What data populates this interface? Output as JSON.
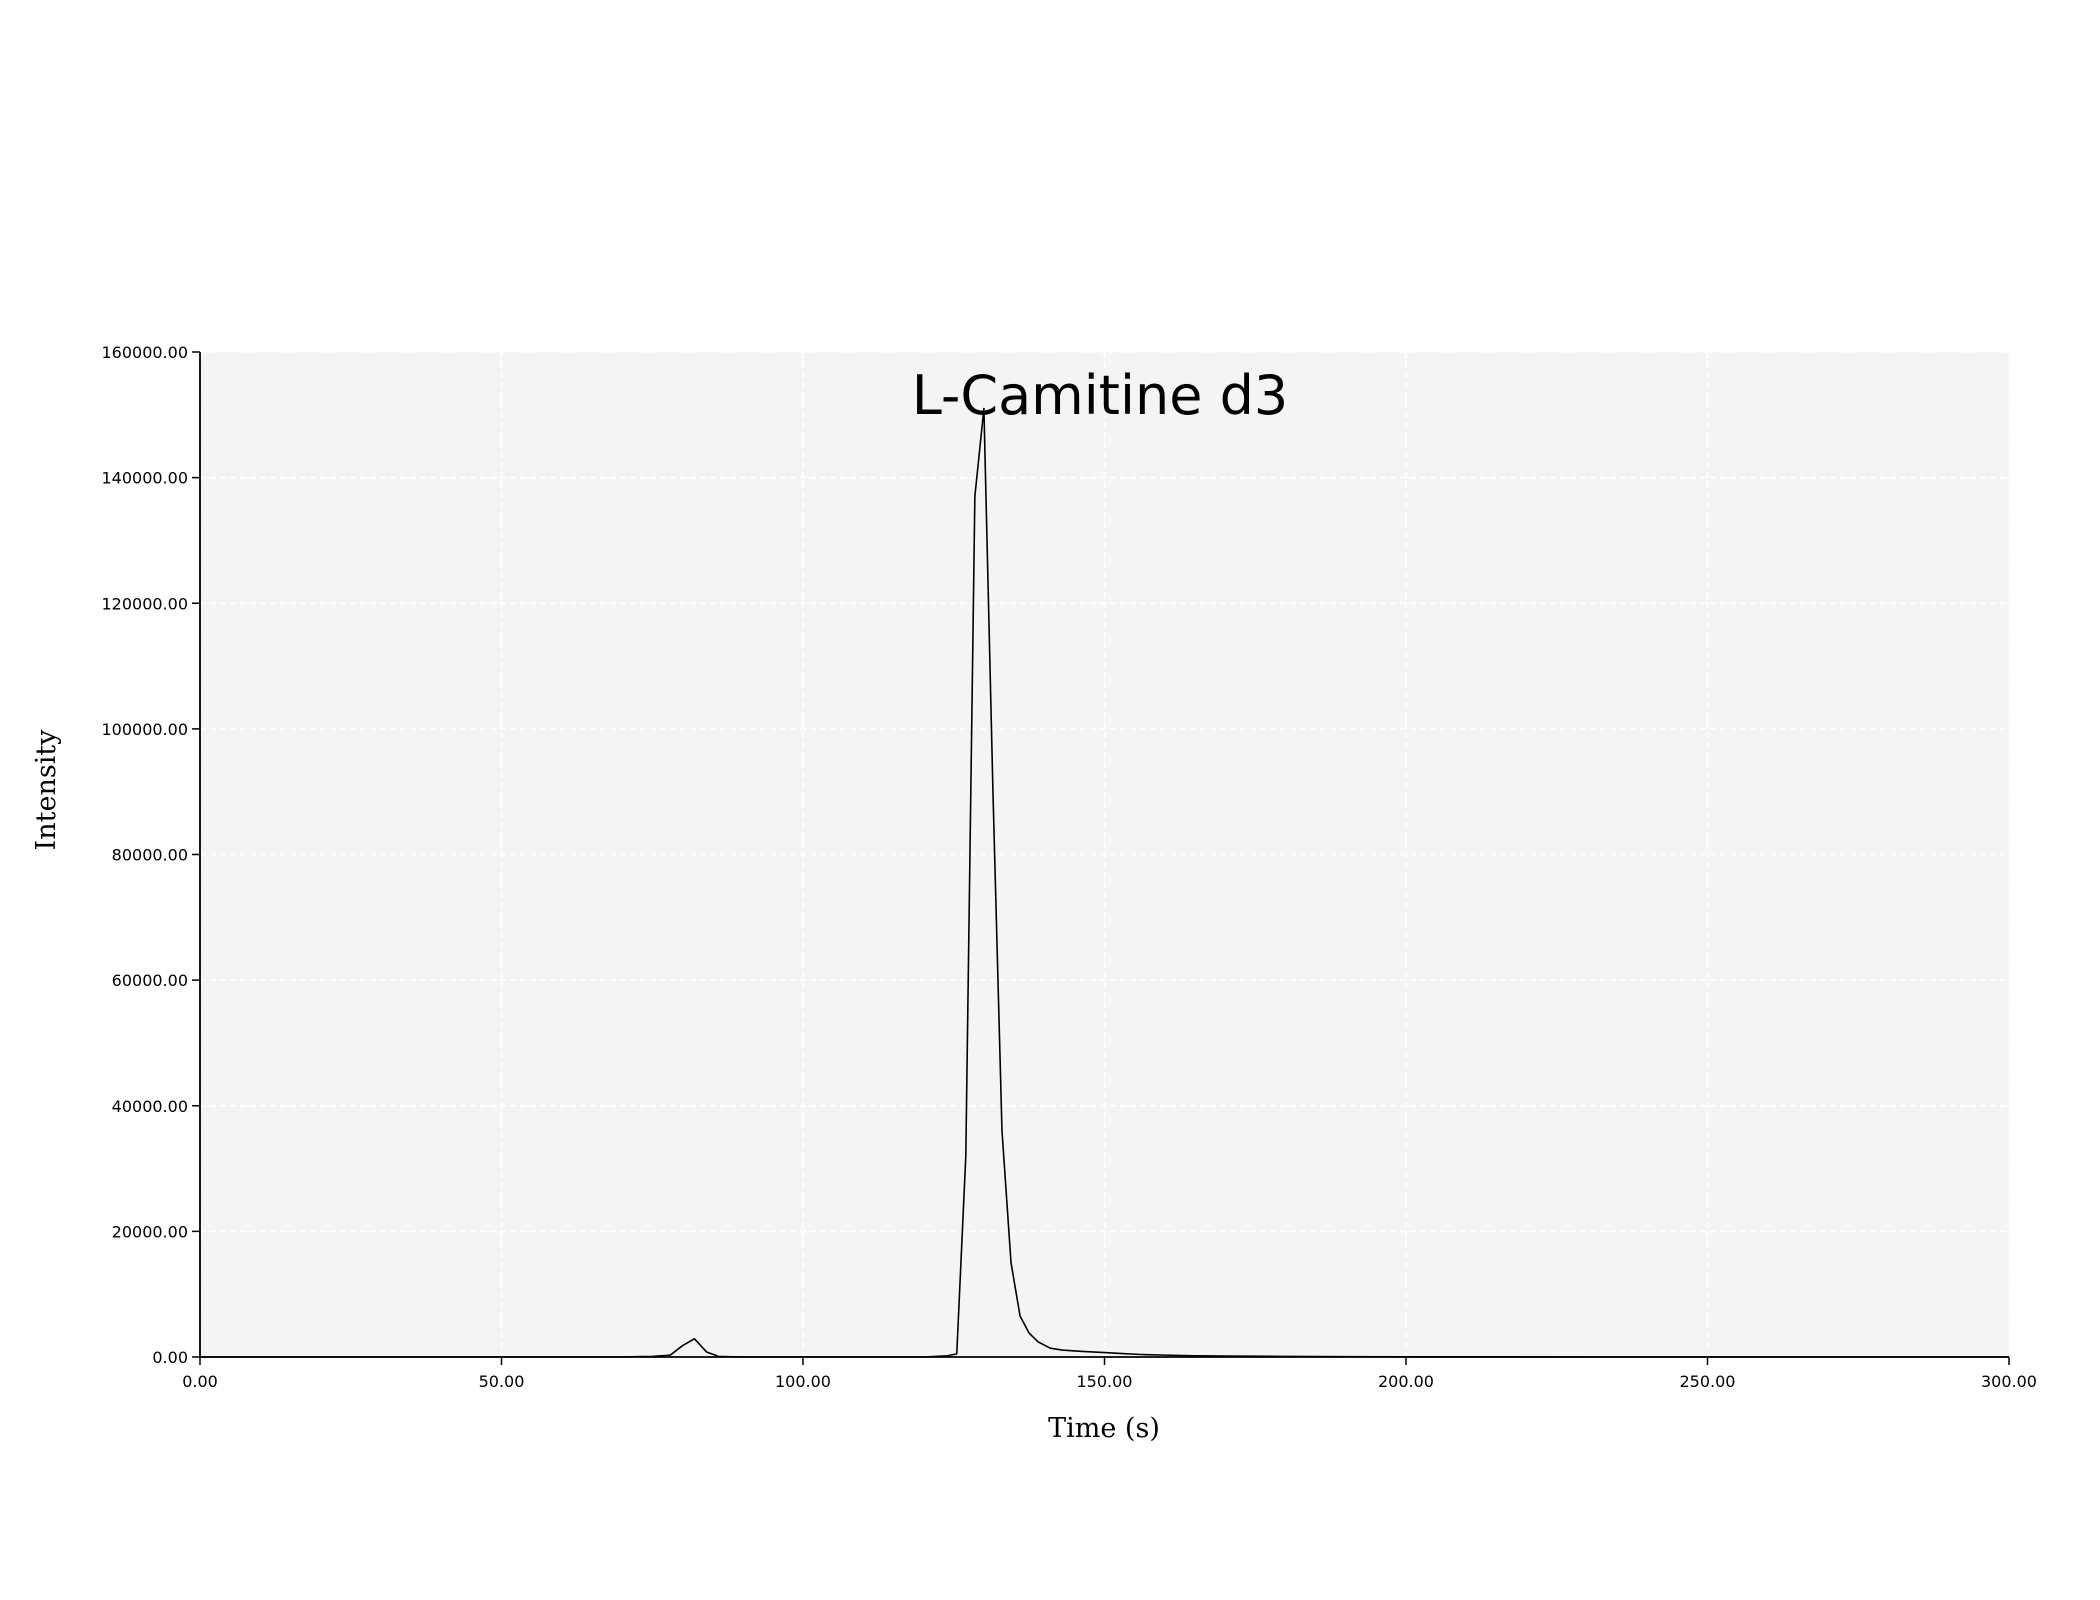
{
  "chart_data": {
    "type": "line",
    "title": "L-Camitine d3",
    "xlabel": "Time (s)",
    "ylabel": "Intensity",
    "xlim": [
      0,
      300
    ],
    "ylim": [
      0,
      160000
    ],
    "x_ticks": [
      "0.00",
      "50.00",
      "100.00",
      "150.00",
      "200.00",
      "250.00",
      "300.00"
    ],
    "y_ticks": [
      "0.00",
      "20000.00",
      "40000.00",
      "60000.00",
      "80000.00",
      "100000.00",
      "120000.00",
      "140000.00",
      "160000.00"
    ],
    "grid": true,
    "plot_background": "#f4f4f4",
    "line_color": "#000000",
    "series": [
      {
        "x": [
          0,
          10,
          20,
          30,
          40,
          50,
          55,
          60,
          65,
          70,
          75,
          78,
          80,
          82,
          84,
          86,
          90,
          100,
          110,
          120,
          124,
          125.5,
          127,
          128.5,
          130,
          131.5,
          133,
          134.5,
          136,
          137.5,
          139,
          141,
          143,
          146,
          150,
          153,
          156,
          160,
          165,
          170,
          180,
          190,
          200,
          220,
          240,
          260,
          280,
          300
        ],
        "y": [
          0,
          0,
          0,
          0,
          0,
          0,
          0,
          0,
          0,
          0,
          100,
          300,
          1800,
          2900,
          800,
          100,
          0,
          0,
          0,
          0,
          200,
          500,
          32000,
          137000,
          151000,
          90000,
          36000,
          15000,
          6500,
          3800,
          2400,
          1400,
          1100,
          900,
          700,
          550,
          400,
          300,
          200,
          150,
          100,
          50,
          30,
          10,
          0,
          0,
          0,
          0
        ]
      }
    ]
  }
}
